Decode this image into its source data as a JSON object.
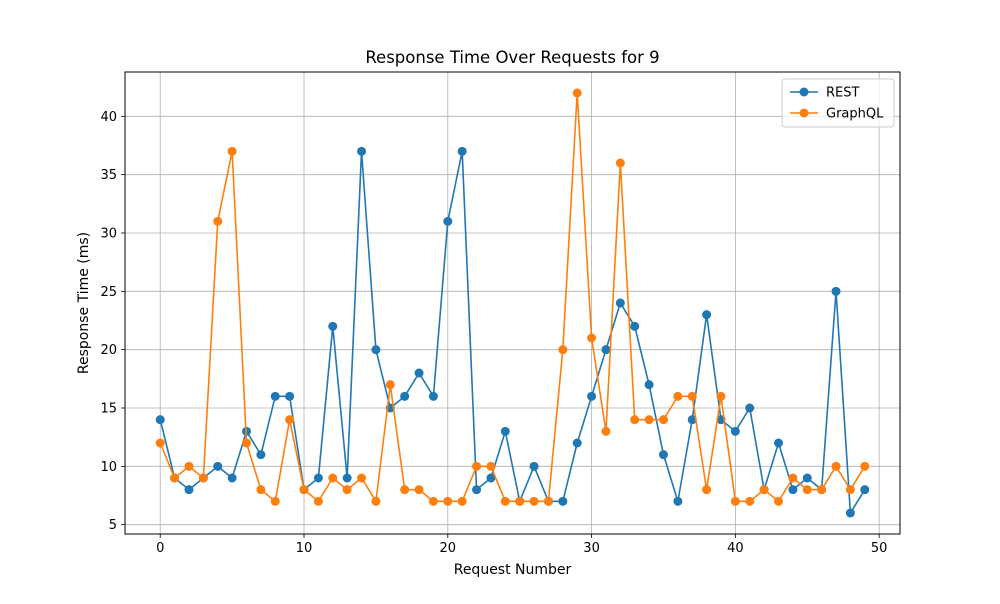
{
  "chart_data": {
    "type": "line",
    "title": "Response Time Over Requests for 9",
    "xlabel": "Request Number",
    "ylabel": "Response Time (ms)",
    "xlim": [
      -2.45,
      51.45
    ],
    "ylim": [
      4.2,
      43.8
    ],
    "xticks": [
      0,
      10,
      20,
      30,
      40,
      50
    ],
    "yticks": [
      5,
      10,
      15,
      20,
      25,
      30,
      35,
      40
    ],
    "grid": true,
    "legend_position": "top-right",
    "x": [
      0,
      1,
      2,
      3,
      4,
      5,
      6,
      7,
      8,
      9,
      10,
      11,
      12,
      13,
      14,
      15,
      16,
      17,
      18,
      19,
      20,
      21,
      22,
      23,
      24,
      25,
      26,
      27,
      28,
      29,
      30,
      31,
      32,
      33,
      34,
      35,
      36,
      37,
      38,
      39,
      40,
      41,
      42,
      43,
      44,
      45,
      46,
      47,
      48,
      49
    ],
    "series": [
      {
        "name": "REST",
        "color": "#1f77b4",
        "values": [
          14,
          9,
          8,
          9,
          10,
          9,
          13,
          11,
          16,
          16,
          8,
          9,
          22,
          9,
          37,
          20,
          15,
          16,
          18,
          16,
          31,
          37,
          8,
          9,
          13,
          7,
          10,
          7,
          7,
          12,
          16,
          20,
          24,
          22,
          17,
          11,
          7,
          14,
          23,
          14,
          13,
          15,
          8,
          12,
          8,
          9,
          8,
          25,
          6,
          8
        ]
      },
      {
        "name": "GraphQL",
        "color": "#ff7f0e",
        "values": [
          12,
          9,
          10,
          9,
          31,
          37,
          12,
          8,
          7,
          14,
          8,
          7,
          9,
          8,
          9,
          7,
          17,
          8,
          8,
          7,
          7,
          7,
          10,
          10,
          7,
          7,
          7,
          7,
          20,
          42,
          21,
          13,
          36,
          14,
          14,
          14,
          16,
          16,
          8,
          16,
          7,
          7,
          8,
          7,
          9,
          8,
          8,
          10,
          8,
          10
        ]
      }
    ]
  }
}
